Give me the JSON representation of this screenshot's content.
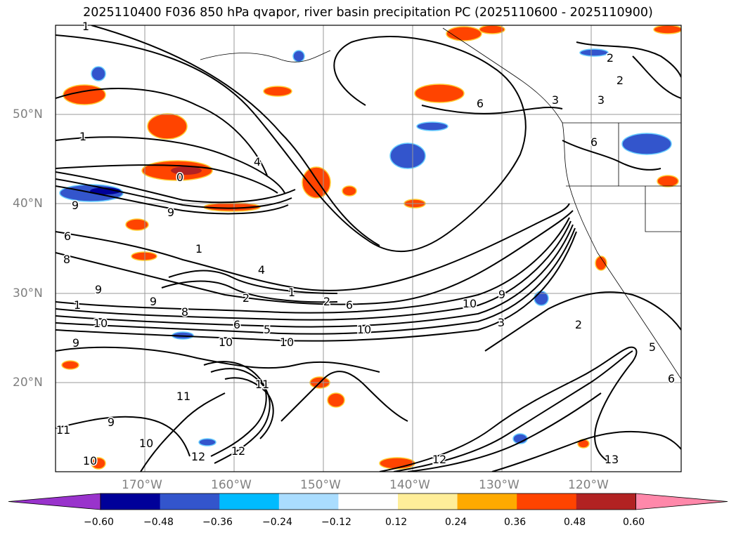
{
  "title": "2025110400 F036 850 hPa qvapor, river basin precipitation PC (2025110600 - 2025110900)",
  "lat_labels": [
    "50°N",
    "40°N",
    "30°N",
    "20°N"
  ],
  "lon_labels": [
    "170°W",
    "160°W",
    "150°W",
    "140°W",
    "130°W",
    "120°W"
  ],
  "colorbar": {
    "colors": [
      "#9933cc",
      "#000099",
      "#3355cc",
      "#00bbff",
      "#aaddff",
      "#ffffff",
      "#ffee99",
      "#ffaa00",
      "#ff4400",
      "#b22222",
      "#ff88aa"
    ],
    "ticks": [
      "−0.60",
      "−0.48",
      "−0.36",
      "−0.24",
      "−0.12",
      "0.12",
      "0.24",
      "0.36",
      "0.48",
      "0.60"
    ]
  },
  "contour_labels": [
    "1",
    "2",
    "2",
    "3",
    "3",
    "6",
    "6",
    "1",
    "4",
    "0",
    "9",
    "9",
    "6",
    "8",
    "4",
    "1",
    "9",
    "9",
    "8",
    "2",
    "1",
    "1",
    "2",
    "6",
    "10",
    "9",
    "3",
    "2",
    "10",
    "6",
    "5",
    "10",
    "9",
    "10",
    "10",
    "11",
    "11",
    "10",
    "9",
    "12",
    "12",
    "12",
    "13",
    "11",
    "5",
    "6",
    "10"
  ]
}
